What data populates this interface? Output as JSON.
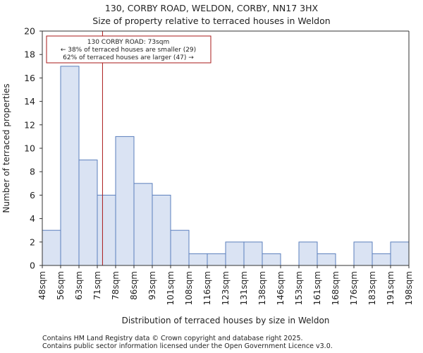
{
  "chart_data": {
    "type": "bar",
    "title_line1": "130, CORBY ROAD, WELDON, CORBY, NN17 3HX",
    "title_line2": "Size of property relative to terraced houses in Weldon",
    "xlabel": "Distribution of terraced houses by size in Weldon",
    "ylabel": "Number of terraced properties",
    "ylim": [
      0,
      20
    ],
    "yticks": [
      0,
      2,
      4,
      6,
      8,
      10,
      12,
      14,
      16,
      18,
      20
    ],
    "bin_edges": [
      "48sqm",
      "56sqm",
      "63sqm",
      "71sqm",
      "78sqm",
      "86sqm",
      "93sqm",
      "101sqm",
      "108sqm",
      "116sqm",
      "123sqm",
      "131sqm",
      "138sqm",
      "146sqm",
      "153sqm",
      "161sqm",
      "168sqm",
      "176sqm",
      "183sqm",
      "191sqm",
      "198sqm"
    ],
    "values": [
      3,
      17,
      9,
      6,
      11,
      7,
      6,
      3,
      1,
      1,
      2,
      2,
      1,
      0,
      2,
      1,
      0,
      2,
      1,
      2
    ],
    "bar_color": "#dae3f3",
    "bar_edge_color": "#5b7fbd",
    "marker": {
      "value_sqm": 73,
      "color": "#aa1a1a",
      "annotation_lines": [
        "130 CORBY ROAD: 73sqm",
        "← 38% of terraced houses are smaller (29)",
        "62% of terraced houses are larger (47) →"
      ]
    },
    "grid": false
  },
  "footer": {
    "line1": "Contains HM Land Registry data © Crown copyright and database right 2025.",
    "line2": "Contains public sector information licensed under the Open Government Licence v3.0."
  }
}
